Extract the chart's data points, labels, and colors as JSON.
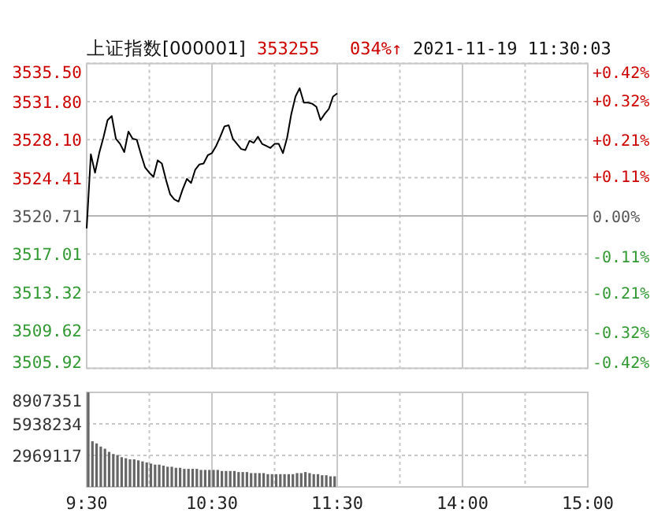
{
  "chart_data": [
    {
      "type": "line",
      "title": "上证指数[000001]",
      "annotations": [
        "353255",
        "034%↑",
        "2021-11-19 11:30:03"
      ],
      "categories": [
        null,
        null,
        null,
        null,
        null,
        null,
        null,
        null,
        null,
        null,
        null,
        null,
        null,
        null,
        null,
        null,
        null,
        null,
        null,
        null,
        null,
        null,
        null,
        null,
        null,
        null,
        null,
        null,
        null,
        null,
        null,
        null,
        null,
        null,
        null,
        null,
        null,
        null,
        null,
        null,
        null,
        null,
        null,
        null,
        null,
        null,
        null,
        null,
        null,
        null,
        null,
        null,
        null,
        null,
        null,
        null,
        null,
        null,
        null,
        null,
        null,
        null,
        null,
        null,
        null,
        null,
        null,
        null,
        null,
        null,
        null,
        null,
        null,
        null,
        null,
        null,
        null,
        null,
        null,
        null,
        null,
        null,
        null,
        null,
        null,
        null,
        null,
        null,
        null,
        null,
        null,
        null,
        null,
        null,
        null,
        null,
        null,
        null,
        null,
        null,
        null,
        null,
        null,
        null,
        null,
        null,
        null,
        null,
        null,
        null,
        null,
        null,
        null,
        null,
        null,
        null,
        null,
        null,
        null,
        null,
        null
      ],
      "ylim": [
        3505.92,
        3535.5
      ],
      "yticks": [
        {
          "value": 3505.92,
          "label": "3505.92"
        },
        {
          "value": 3509.62,
          "label": "3509.62"
        },
        {
          "value": 3513.32,
          "label": "3513.32"
        },
        {
          "value": 3517.01,
          "label": "3517.01"
        },
        {
          "value": 3520.71,
          "label": "3520.71"
        },
        {
          "value": 3524.41,
          "label": "3524.41"
        },
        {
          "value": 3528.1,
          "label": "3528.10"
        },
        {
          "value": 3531.8,
          "label": "3531.80"
        },
        {
          "value": 3535.5,
          "label": "3535.50"
        }
      ],
      "y2lim": [
        -0.42,
        0.42
      ],
      "y2ticks": [
        {
          "value": -0.42,
          "label": "-0.42%"
        },
        {
          "value": -0.32,
          "label": "-0.32%"
        },
        {
          "value": -0.21,
          "label": "-0.21%"
        },
        {
          "value": -0.11,
          "label": "-0.11%"
        },
        {
          "value": 0,
          "label": "0.00%"
        },
        {
          "value": 0.11,
          "label": "+0.11%"
        },
        {
          "value": 0.21,
          "label": "+0.21%"
        },
        {
          "value": 0.32,
          "label": "+0.32%"
        },
        {
          "value": 0.42,
          "label": "+0.42%"
        }
      ],
      "ref_lines": [
        {
          "axis": "y2",
          "value": 0,
          "color": "#b4b4b4"
        }
      ],
      "grid": true,
      "tick_labels": "y",
      "series": [
        {
          "color": "#000000",
          "values": [
            3519.5,
            3526.7,
            3524.9,
            3526.8,
            3528.3,
            3530.0,
            3530.4,
            3528.2,
            3527.7,
            3526.9,
            3528.9,
            3528.2,
            3528.1,
            3526.7,
            3525.4,
            3524.9,
            3524.5,
            3526.1,
            3525.8,
            3524.2,
            3522.8,
            3522.3,
            3522.1,
            3523.3,
            3524.3,
            3523.9,
            3525.2,
            3525.7,
            3525.8,
            3526.6,
            3526.8,
            3527.5,
            3528.4,
            3529.4,
            3529.5,
            3528.2,
            3527.7,
            3527.2,
            3527.1,
            3528.0,
            3527.8,
            3528.4,
            3527.7,
            3527.5,
            3527.3,
            3527.7,
            3527.7,
            3526.8,
            3528.3,
            3530.6,
            3532.3,
            3533.1,
            3531.7,
            3531.7,
            3531.6,
            3531.3,
            3530.0,
            3530.6,
            3531.1,
            3532.3,
            3532.6,
            null,
            null,
            null,
            null,
            null,
            null,
            null,
            null,
            null,
            null,
            null,
            null,
            null,
            null,
            null,
            null,
            null,
            null,
            null,
            null,
            null,
            null,
            null,
            null,
            null,
            null,
            null,
            null,
            null,
            null,
            null,
            null,
            null,
            null,
            null,
            null,
            null,
            null,
            null,
            null,
            null,
            null,
            null,
            null,
            null,
            null,
            null,
            null,
            null,
            null,
            null,
            null,
            null,
            null,
            null,
            null,
            null,
            null,
            null,
            null
          ]
        }
      ]
    },
    {
      "type": "bar",
      "color": "#666666",
      "grid": true,
      "categories": [
        "9:30",
        null,
        null,
        null,
        null,
        null,
        null,
        null,
        null,
        null,
        null,
        null,
        null,
        null,
        null,
        null,
        null,
        null,
        null,
        null,
        null,
        null,
        null,
        null,
        null,
        null,
        null,
        null,
        null,
        null,
        "10:30",
        null,
        null,
        null,
        null,
        null,
        null,
        null,
        null,
        null,
        null,
        null,
        null,
        null,
        null,
        null,
        null,
        null,
        null,
        null,
        null,
        null,
        null,
        null,
        null,
        null,
        null,
        null,
        null,
        null,
        "11:30",
        null,
        null,
        null,
        null,
        null,
        null,
        null,
        null,
        null,
        null,
        null,
        null,
        null,
        null,
        null,
        null,
        null,
        null,
        null,
        null,
        null,
        null,
        null,
        null,
        null,
        null,
        null,
        null,
        null,
        "14:00",
        null,
        null,
        null,
        null,
        null,
        null,
        null,
        null,
        null,
        null,
        null,
        null,
        null,
        null,
        null,
        null,
        null,
        null,
        null,
        null,
        null,
        null,
        null,
        null,
        null,
        null,
        null,
        null,
        null,
        "15:00"
      ],
      "ylim": [
        0,
        8907351
      ],
      "yticks": [
        2969117,
        5938234,
        8907351
      ],
      "values": [
        8900000,
        4300000,
        4100000,
        3800000,
        3600000,
        3300000,
        3100000,
        3000000,
        2800000,
        2700000,
        2600000,
        2600000,
        2500000,
        2400000,
        2300000,
        2200000,
        2100000,
        2100000,
        2000000,
        1900000,
        1900000,
        1800000,
        1800000,
        1700000,
        1700000,
        1700000,
        1700000,
        1600000,
        1600000,
        1600000,
        1600000,
        1600000,
        1500000,
        1500000,
        1500000,
        1500000,
        1400000,
        1400000,
        1400000,
        1300000,
        1300000,
        1300000,
        1300000,
        1200000,
        1200000,
        1200000,
        1200000,
        1200000,
        1200000,
        1200000,
        1300000,
        1300000,
        1400000,
        1300000,
        1200000,
        1200000,
        1100000,
        1100000,
        1000000,
        1000000,
        null,
        null,
        null,
        null,
        null,
        null,
        null,
        null,
        null,
        null,
        null,
        null,
        null,
        null,
        null,
        null,
        null,
        null,
        null,
        null,
        null,
        null,
        null,
        null,
        null,
        null,
        null,
        null,
        null,
        null,
        null,
        null,
        null,
        null,
        null,
        null,
        null,
        null,
        null,
        null,
        null,
        null,
        null,
        null,
        null,
        null,
        null,
        null,
        null,
        null,
        null,
        null,
        null,
        null,
        null,
        null,
        null,
        null,
        null,
        null,
        null
      ]
    }
  ]
}
